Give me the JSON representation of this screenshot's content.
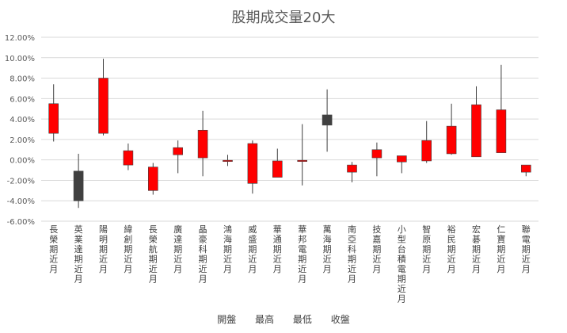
{
  "chart_data": {
    "type": "candlestick",
    "title": "股期成交量20大",
    "legend": [
      "開盤",
      "最高",
      "最低",
      "收盤"
    ],
    "ylim": [
      -0.06,
      0.12
    ],
    "yticks": [
      "12.00%",
      "10.00%",
      "8.00%",
      "6.00%",
      "4.00%",
      "2.00%",
      "0.00%",
      "-2.00%",
      "-4.00%",
      "-6.00%"
    ],
    "colors": {
      "up": "#ff0000",
      "down": "#404040",
      "wick": "#404040",
      "grid": "#d9d9d9"
    },
    "categories": [
      "長榮期近月",
      "英業達期近月",
      "陽明期近月",
      "緯創期近月",
      "長榮航期近月",
      "廣達期近月",
      "晶豪科期近月",
      "鴻海期近月",
      "威盛期近月",
      "華通期近月",
      "華邦電期近月",
      "萬海期近月",
      "南亞科期近月",
      "技嘉期近月",
      "小型台積電期近月",
      "智原期近月",
      "裕民期近月",
      "宏碁期近月",
      "仁寶期近月",
      "聯電期近月"
    ],
    "series": [
      {
        "name": "開盤",
        "values": [
          0.026,
          -0.011,
          0.026,
          -0.005,
          -0.03,
          0.005,
          0.002,
          -0.002,
          -0.023,
          -0.017,
          -0.002,
          0.044,
          -0.012,
          0.002,
          -0.002,
          -0.001,
          0.006,
          0.003,
          0.007,
          -0.012
        ]
      },
      {
        "name": "最高",
        "values": [
          0.074,
          0.006,
          0.099,
          0.016,
          -0.003,
          0.019,
          0.048,
          0.005,
          0.019,
          0.011,
          0.035,
          0.069,
          -0.002,
          0.017,
          0.004,
          0.038,
          0.055,
          0.072,
          0.093,
          -0.005
        ]
      },
      {
        "name": "最低",
        "values": [
          0.018,
          -0.047,
          0.024,
          -0.01,
          -0.034,
          -0.013,
          -0.016,
          -0.006,
          -0.033,
          -0.017,
          -0.025,
          0.008,
          -0.022,
          -0.016,
          -0.013,
          -0.003,
          0.005,
          0.003,
          0.007,
          -0.016
        ]
      },
      {
        "name": "收盤",
        "values": [
          0.055,
          -0.04,
          0.08,
          0.009,
          -0.007,
          0.012,
          0.029,
          -0.001,
          0.016,
          -0.001,
          -0.001,
          0.034,
          -0.005,
          0.01,
          0.004,
          0.019,
          0.033,
          0.054,
          0.049,
          -0.005
        ]
      }
    ]
  }
}
